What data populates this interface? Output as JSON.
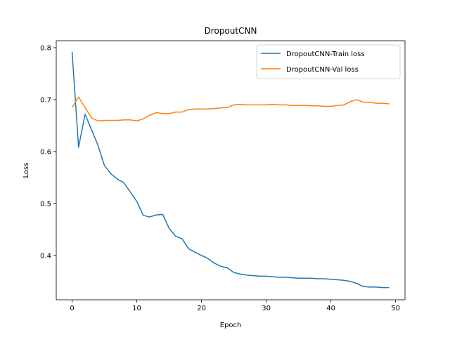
{
  "chart_data": {
    "type": "line",
    "title": "DropoutCNN",
    "xlabel": "Epoch",
    "ylabel": "Loss",
    "xlim": [
      -2.45,
      51.45
    ],
    "ylim": [
      0.3145,
      0.8135
    ],
    "xticks": [
      0,
      10,
      20,
      30,
      40,
      50
    ],
    "yticks": [
      0.4,
      0.5,
      0.6,
      0.7,
      0.8
    ],
    "legend_position": "top-right",
    "x": [
      0,
      1,
      2,
      3,
      4,
      5,
      6,
      7,
      8,
      9,
      10,
      11,
      12,
      13,
      14,
      15,
      16,
      17,
      18,
      19,
      20,
      21,
      22,
      23,
      24,
      25,
      26,
      27,
      28,
      29,
      30,
      31,
      32,
      33,
      34,
      35,
      36,
      37,
      38,
      39,
      40,
      41,
      42,
      43,
      44,
      45,
      46,
      47,
      48,
      49
    ],
    "series": [
      {
        "name": "DropoutCNN-Train loss",
        "color": "#1f77b4",
        "values": [
          0.792,
          0.608,
          0.672,
          0.642,
          0.612,
          0.573,
          0.557,
          0.547,
          0.54,
          0.522,
          0.504,
          0.477,
          0.474,
          0.478,
          0.479,
          0.452,
          0.437,
          0.432,
          0.413,
          0.406,
          0.4,
          0.394,
          0.385,
          0.379,
          0.376,
          0.367,
          0.364,
          0.362,
          0.361,
          0.36,
          0.36,
          0.359,
          0.358,
          0.358,
          0.357,
          0.356,
          0.356,
          0.356,
          0.355,
          0.355,
          0.354,
          0.353,
          0.352,
          0.35,
          0.346,
          0.34,
          0.339,
          0.339,
          0.338,
          0.338
        ]
      },
      {
        "name": "DropoutCNN-Val loss",
        "color": "#ff7f0e",
        "values": [
          0.685,
          0.705,
          0.685,
          0.665,
          0.659,
          0.66,
          0.66,
          0.66,
          0.661,
          0.661,
          0.659,
          0.663,
          0.67,
          0.675,
          0.673,
          0.673,
          0.676,
          0.676,
          0.681,
          0.682,
          0.682,
          0.682,
          0.683,
          0.684,
          0.685,
          0.69,
          0.691,
          0.69,
          0.69,
          0.69,
          0.69,
          0.691,
          0.69,
          0.69,
          0.689,
          0.689,
          0.689,
          0.688,
          0.688,
          0.687,
          0.687,
          0.689,
          0.69,
          0.696,
          0.7,
          0.695,
          0.695,
          0.693,
          0.693,
          0.692
        ]
      }
    ]
  }
}
